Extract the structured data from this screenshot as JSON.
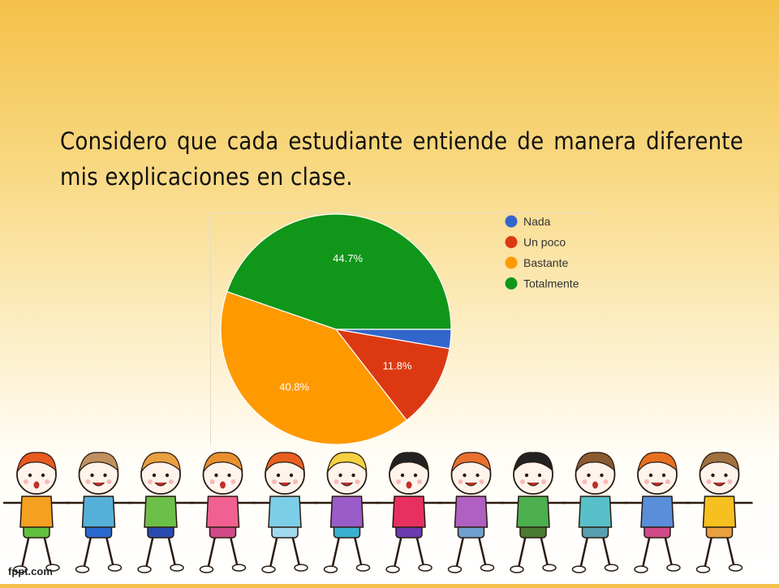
{
  "slide": {
    "question": "Considero que cada estudiante entiende de manera diferente mis explicaciones en clase.",
    "brand": "fppt.com"
  },
  "chart_data": {
    "type": "pie",
    "categories": [
      "Nada",
      "Un poco",
      "Bastante",
      "Totalmente"
    ],
    "values": [
      2.7,
      11.8,
      40.8,
      44.7
    ],
    "data_labels": [
      "",
      "11.8%",
      "40.8%",
      "44.7%"
    ],
    "colors": [
      "#3366cc",
      "#dc3912",
      "#ff9900",
      "#109618"
    ],
    "legend_position": "right",
    "start_angle": "3 o'clock",
    "direction": "clockwise"
  }
}
